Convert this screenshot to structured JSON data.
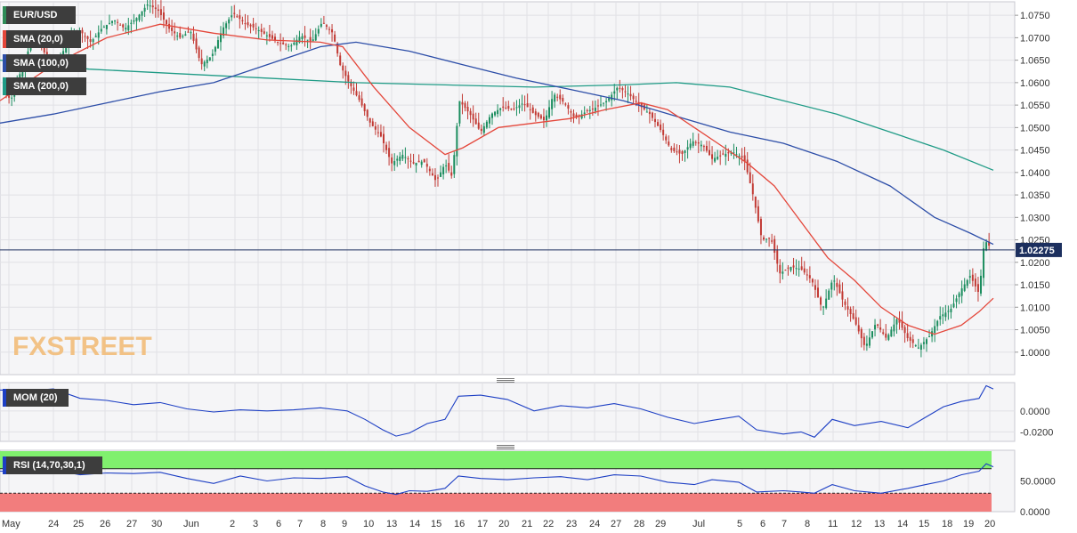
{
  "chart_data": [
    {
      "type": "candlestick",
      "symbol_label": "EUR/USD",
      "indicators": [
        {
          "name": "SMA (20,0)",
          "color": "#e4473b"
        },
        {
          "name": "SMA (100,0)",
          "color": "#2d4ea8"
        },
        {
          "name": "SMA (200,0)",
          "color": "#1f9b86"
        }
      ],
      "ylim": [
        0.995,
        1.078
      ],
      "y_ticks": [
        "1.0750",
        "1.0700",
        "1.0650",
        "1.0600",
        "1.0550",
        "1.0500",
        "1.0450",
        "1.0400",
        "1.0350",
        "1.0300",
        "1.0250",
        "1.0200",
        "1.0150",
        "1.0100",
        "1.0050",
        "1.0000"
      ],
      "current_price": 1.02275,
      "current_price_label": "1.02275",
      "x_tick_labels": [
        "May",
        "24",
        "25",
        "26",
        "27",
        "30",
        "Jun",
        "2",
        "3",
        "6",
        "7",
        "8",
        "9",
        "10",
        "13",
        "14",
        "15",
        "16",
        "17",
        "20",
        "21",
        "22",
        "23",
        "24",
        "27",
        "28",
        "29",
        "Jul",
        "5",
        "6",
        "7",
        "8",
        "11",
        "12",
        "13",
        "14",
        "15",
        "18",
        "19",
        "20"
      ],
      "close_path": [
        [
          0,
          1.06
        ],
        [
          12,
          1.056
        ],
        [
          26,
          1.064
        ],
        [
          38,
          1.0705
        ],
        [
          52,
          1.066
        ],
        [
          64,
          1.064
        ],
        [
          78,
          1.07
        ],
        [
          90,
          1.0715
        ],
        [
          102,
          1.069
        ],
        [
          114,
          1.072
        ],
        [
          128,
          1.074
        ],
        [
          140,
          1.072
        ],
        [
          154,
          1.0745
        ],
        [
          166,
          1.0775
        ],
        [
          178,
          1.076
        ],
        [
          190,
          1.072
        ],
        [
          202,
          1.07
        ],
        [
          214,
          1.0715
        ],
        [
          226,
          1.064
        ],
        [
          238,
          1.066
        ],
        [
          250,
          1.072
        ],
        [
          262,
          1.0755
        ],
        [
          276,
          1.073
        ],
        [
          288,
          1.072
        ],
        [
          300,
          1.0705
        ],
        [
          312,
          1.069
        ],
        [
          326,
          1.068
        ],
        [
          338,
          1.0705
        ],
        [
          350,
          1.069
        ],
        [
          362,
          1.0735
        ],
        [
          374,
          1.071
        ],
        [
          382,
          1.064
        ],
        [
          392,
          1.06
        ],
        [
          404,
          1.056
        ],
        [
          416,
          1.051
        ],
        [
          428,
          1.048
        ],
        [
          440,
          1.042
        ],
        [
          452,
          1.044
        ],
        [
          464,
          1.042
        ],
        [
          476,
          1.0425
        ],
        [
          490,
          1.038
        ],
        [
          500,
          1.042
        ],
        [
          508,
          1.039
        ],
        [
          516,
          1.056
        ],
        [
          528,
          1.053
        ],
        [
          540,
          1.049
        ],
        [
          552,
          1.053
        ],
        [
          564,
          1.0545
        ],
        [
          576,
          1.054
        ],
        [
          588,
          1.0555
        ],
        [
          600,
          1.053
        ],
        [
          612,
          1.0515
        ],
        [
          622,
          1.0575
        ],
        [
          634,
          1.0555
        ],
        [
          646,
          1.052
        ],
        [
          658,
          1.0535
        ],
        [
          670,
          1.0545
        ],
        [
          682,
          1.056
        ],
        [
          694,
          1.059
        ],
        [
          706,
          1.0575
        ],
        [
          718,
          1.055
        ],
        [
          730,
          1.053
        ],
        [
          742,
          1.0495
        ],
        [
          754,
          1.045
        ],
        [
          766,
          1.044
        ],
        [
          778,
          1.047
        ],
        [
          790,
          1.046
        ],
        [
          800,
          1.043
        ],
        [
          812,
          1.044
        ],
        [
          824,
          1.0445
        ],
        [
          836,
          1.043
        ],
        [
          846,
          1.035
        ],
        [
          856,
          1.025
        ],
        [
          866,
          1.0255
        ],
        [
          876,
          1.0175
        ],
        [
          888,
          1.019
        ],
        [
          900,
          1.0185
        ],
        [
          912,
          1.016
        ],
        [
          924,
          1.0095
        ],
        [
          936,
          1.0165
        ],
        [
          948,
          1.011
        ],
        [
          960,
          1.007
        ],
        [
          972,
          1.001
        ],
        [
          984,
          1.0065
        ],
        [
          996,
          1.003
        ],
        [
          1008,
          1.0075
        ],
        [
          1020,
          1.003
        ],
        [
          1032,
          1.001
        ],
        [
          1044,
          1.0035
        ],
        [
          1056,
          1.008
        ],
        [
          1068,
          1.0095
        ],
        [
          1080,
          1.014
        ],
        [
          1090,
          1.017
        ],
        [
          1100,
          1.013
        ],
        [
          1106,
          1.025
        ],
        [
          1112,
          1.0235
        ],
        [
          1116,
          1.02275
        ]
      ],
      "sma20_path": [
        [
          0,
          1.056
        ],
        [
          60,
          1.064
        ],
        [
          120,
          1.07
        ],
        [
          180,
          1.073
        ],
        [
          240,
          1.071
        ],
        [
          300,
          1.0695
        ],
        [
          360,
          1.069
        ],
        [
          385,
          1.068
        ],
        [
          420,
          1.059
        ],
        [
          460,
          1.05
        ],
        [
          500,
          1.044
        ],
        [
          520,
          1.0455
        ],
        [
          560,
          1.05
        ],
        [
          600,
          1.051
        ],
        [
          640,
          1.052
        ],
        [
          680,
          1.054
        ],
        [
          720,
          1.0555
        ],
        [
          750,
          1.054
        ],
        [
          780,
          1.05
        ],
        [
          810,
          1.046
        ],
        [
          840,
          1.042
        ],
        [
          870,
          1.037
        ],
        [
          900,
          1.029
        ],
        [
          930,
          1.021
        ],
        [
          960,
          1.016
        ],
        [
          990,
          1.01
        ],
        [
          1020,
          1.006
        ],
        [
          1050,
          1.004
        ],
        [
          1080,
          1.006
        ],
        [
          1100,
          1.009
        ],
        [
          1116,
          1.012
        ]
      ],
      "sma100_path": [
        [
          0,
          1.051
        ],
        [
          60,
          1.053
        ],
        [
          120,
          1.0555
        ],
        [
          180,
          1.058
        ],
        [
          240,
          1.06
        ],
        [
          300,
          1.064
        ],
        [
          360,
          1.068
        ],
        [
          400,
          1.069
        ],
        [
          460,
          1.067
        ],
        [
          520,
          1.064
        ],
        [
          580,
          1.061
        ],
        [
          640,
          1.0585
        ],
        [
          700,
          1.056
        ],
        [
          760,
          1.0525
        ],
        [
          820,
          1.049
        ],
        [
          880,
          1.0465
        ],
        [
          940,
          1.0425
        ],
        [
          1000,
          1.037
        ],
        [
          1050,
          1.03
        ],
        [
          1090,
          1.0265
        ],
        [
          1116,
          1.024
        ]
      ],
      "sma200_path": [
        [
          0,
          1.065
        ],
        [
          100,
          1.063
        ],
        [
          200,
          1.062
        ],
        [
          300,
          1.061
        ],
        [
          400,
          1.06
        ],
        [
          500,
          1.0595
        ],
        [
          600,
          1.059
        ],
        [
          700,
          1.0595
        ],
        [
          760,
          1.06
        ],
        [
          820,
          1.059
        ],
        [
          880,
          1.056
        ],
        [
          940,
          1.053
        ],
        [
          1000,
          1.049
        ],
        [
          1060,
          1.045
        ],
        [
          1116,
          1.0405
        ]
      ]
    },
    {
      "type": "line",
      "indicator_label": "MOM (20)",
      "ylim": [
        -0.029,
        0.027
      ],
      "y_ticks": [
        "0.0000",
        "-0.0200"
      ],
      "series_color": "#1d3fc4",
      "path": [
        [
          0,
          0.02
        ],
        [
          30,
          0.019
        ],
        [
          60,
          0.021
        ],
        [
          90,
          0.012
        ],
        [
          120,
          0.01
        ],
        [
          150,
          0.006
        ],
        [
          180,
          0.008
        ],
        [
          210,
          0.002
        ],
        [
          240,
          -0.001
        ],
        [
          270,
          0.001
        ],
        [
          300,
          0.0
        ],
        [
          330,
          0.001
        ],
        [
          360,
          0.003
        ],
        [
          390,
          0.0
        ],
        [
          410,
          -0.008
        ],
        [
          430,
          -0.018
        ],
        [
          445,
          -0.024
        ],
        [
          460,
          -0.021
        ],
        [
          480,
          -0.012
        ],
        [
          500,
          -0.008
        ],
        [
          515,
          0.014
        ],
        [
          540,
          0.015
        ],
        [
          570,
          0.011
        ],
        [
          600,
          0.0
        ],
        [
          630,
          0.005
        ],
        [
          660,
          0.003
        ],
        [
          690,
          0.007
        ],
        [
          720,
          0.002
        ],
        [
          750,
          -0.006
        ],
        [
          780,
          -0.012
        ],
        [
          800,
          -0.009
        ],
        [
          830,
          -0.005
        ],
        [
          850,
          -0.018
        ],
        [
          880,
          -0.022
        ],
        [
          900,
          -0.02
        ],
        [
          915,
          -0.025
        ],
        [
          935,
          -0.008
        ],
        [
          960,
          -0.014
        ],
        [
          990,
          -0.01
        ],
        [
          1020,
          -0.016
        ],
        [
          1040,
          -0.006
        ],
        [
          1060,
          0.004
        ],
        [
          1080,
          0.009
        ],
        [
          1100,
          0.012
        ],
        [
          1108,
          0.024
        ],
        [
          1116,
          0.021
        ]
      ]
    },
    {
      "type": "line",
      "indicator_label": "RSI (14,70,30,1)",
      "ylim": [
        0,
        100
      ],
      "y_ticks": [
        "50.0000",
        "0.0000"
      ],
      "overbought": 70,
      "oversold": 30,
      "series_color": "#1d3fc4",
      "overbought_color": "#80f06e",
      "oversold_color": "#f27d7d",
      "path": [
        [
          0,
          66
        ],
        [
          30,
          64
        ],
        [
          60,
          68
        ],
        [
          90,
          60
        ],
        [
          120,
          63
        ],
        [
          150,
          62
        ],
        [
          180,
          64
        ],
        [
          210,
          54
        ],
        [
          240,
          46
        ],
        [
          270,
          58
        ],
        [
          300,
          50
        ],
        [
          330,
          55
        ],
        [
          360,
          54
        ],
        [
          390,
          57
        ],
        [
          410,
          42
        ],
        [
          430,
          32
        ],
        [
          445,
          28
        ],
        [
          460,
          34
        ],
        [
          480,
          33
        ],
        [
          500,
          38
        ],
        [
          515,
          58
        ],
        [
          540,
          54
        ],
        [
          570,
          52
        ],
        [
          600,
          55
        ],
        [
          630,
          57
        ],
        [
          660,
          52
        ],
        [
          690,
          60
        ],
        [
          720,
          58
        ],
        [
          750,
          48
        ],
        [
          780,
          44
        ],
        [
          800,
          52
        ],
        [
          830,
          48
        ],
        [
          850,
          32
        ],
        [
          880,
          34
        ],
        [
          900,
          32
        ],
        [
          915,
          30
        ],
        [
          935,
          44
        ],
        [
          960,
          34
        ],
        [
          990,
          30
        ],
        [
          1020,
          38
        ],
        [
          1040,
          44
        ],
        [
          1060,
          50
        ],
        [
          1080,
          60
        ],
        [
          1100,
          66
        ],
        [
          1108,
          78
        ],
        [
          1116,
          73
        ]
      ]
    }
  ],
  "watermark": "FXSTREET"
}
